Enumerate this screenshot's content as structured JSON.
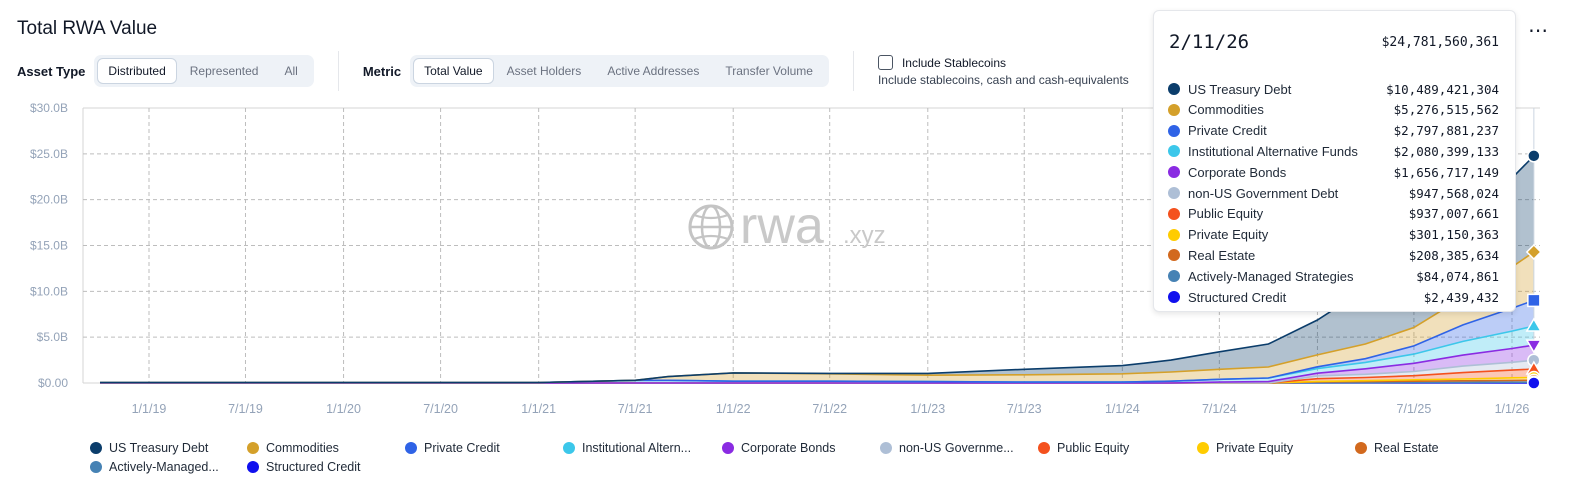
{
  "header": {
    "title": "Total RWA Value",
    "more_icon": "more-dots-icon"
  },
  "controls": {
    "asset_type_label": "Asset Type",
    "asset_type_options": [
      "Distributed",
      "Represented",
      "All"
    ],
    "asset_type_selected": "Distributed",
    "metric_label": "Metric",
    "metric_options": [
      "Total Value",
      "Asset Holders",
      "Active Addresses",
      "Transfer Volume"
    ],
    "metric_selected": "Total Value",
    "stablecoins_label": "Include Stablecoins",
    "stablecoins_sub": "Include stablecoins, cash and cash-equivalents",
    "stablecoins_checked": false
  },
  "watermark": {
    "brand": "rwa",
    "suffix": ".xyz",
    "icon": "globe-icon"
  },
  "tooltip": {
    "date": "2/11/26",
    "total": "$24,781,560,361",
    "rows": [
      {
        "name": "US Treasury Debt",
        "value": "$10,489,421,304",
        "color": "#0b3d6b"
      },
      {
        "name": "Commodities",
        "value": "$5,276,515,562",
        "color": "#d4a02a"
      },
      {
        "name": "Private Credit",
        "value": "$2,797,881,237",
        "color": "#2f63e6"
      },
      {
        "name": "Institutional Alternative Funds",
        "value": "$2,080,399,133",
        "color": "#3cc7ea"
      },
      {
        "name": "Corporate Bonds",
        "value": "$1,656,717,149",
        "color": "#8a2be2"
      },
      {
        "name": "non-US Government Debt",
        "value": "$947,568,024",
        "color": "#aebfd6"
      },
      {
        "name": "Public Equity",
        "value": "$937,007,661",
        "color": "#f4511e"
      },
      {
        "name": "Private Equity",
        "value": "$301,150,363",
        "color": "#ffcc00"
      },
      {
        "name": "Real Estate",
        "value": "$208,385,634",
        "color": "#d2691e"
      },
      {
        "name": "Actively-Managed Strategies",
        "value": "$84,074,861",
        "color": "#4682b4"
      },
      {
        "name": "Structured Credit",
        "value": "$2,439,432",
        "color": "#1010ee"
      }
    ]
  },
  "legend": [
    {
      "name": "US Treasury Debt",
      "color": "#0b3d6b"
    },
    {
      "name": "Commodities",
      "color": "#d4a02a"
    },
    {
      "name": "Private Credit",
      "color": "#2f63e6"
    },
    {
      "name": "Institutional Altern...",
      "color": "#3cc7ea"
    },
    {
      "name": "Corporate Bonds",
      "color": "#8a2be2"
    },
    {
      "name": "non-US Governme...",
      "color": "#aebfd6"
    },
    {
      "name": "Public Equity",
      "color": "#f4511e"
    },
    {
      "name": "Private Equity",
      "color": "#ffcc00"
    },
    {
      "name": "Real Estate",
      "color": "#d2691e"
    },
    {
      "name": "Actively-Managed...",
      "color": "#4682b4"
    },
    {
      "name": "Structured Credit",
      "color": "#1010ee"
    }
  ],
  "chart_data": {
    "type": "area",
    "stacked": true,
    "title": "Total RWA Value",
    "xlabel": "",
    "ylabel": "",
    "ylim": [
      0,
      30
    ],
    "yunit": "B",
    "yticks": [
      "$0.00",
      "$5.0B",
      "$10.0B",
      "$15.0B",
      "$20.0B",
      "$25.0B",
      "$30.0B"
    ],
    "xticks": [
      "1/1/19",
      "7/1/19",
      "1/1/20",
      "7/1/20",
      "1/1/21",
      "7/1/21",
      "1/1/22",
      "7/1/22",
      "1/1/23",
      "7/1/23",
      "1/1/24",
      "7/1/24",
      "1/1/25",
      "7/1/25",
      "1/1/26"
    ],
    "x": [
      "10/1/18",
      "1/1/19",
      "7/1/19",
      "1/1/20",
      "7/1/20",
      "1/1/21",
      "7/1/21",
      "9/1/21",
      "1/1/22",
      "7/1/22",
      "1/1/23",
      "7/1/23",
      "1/1/24",
      "4/1/24",
      "7/1/24",
      "10/1/24",
      "1/1/25",
      "4/1/25",
      "7/1/25",
      "10/1/25",
      "1/1/26",
      "2/11/26"
    ],
    "grid": true,
    "legend_position": "bottom",
    "series": [
      {
        "name": "Structured Credit",
        "color": "#1010ee",
        "values": [
          0,
          0,
          0,
          0,
          0,
          0,
          0,
          0,
          0,
          0,
          0,
          0,
          0,
          0,
          0,
          0,
          0,
          0,
          0,
          0,
          0.002,
          0.002
        ]
      },
      {
        "name": "Actively-Managed Strategies",
        "color": "#4682b4",
        "values": [
          0,
          0,
          0,
          0,
          0,
          0,
          0,
          0,
          0,
          0,
          0,
          0,
          0,
          0,
          0,
          0,
          0.02,
          0.03,
          0.05,
          0.06,
          0.08,
          0.084
        ]
      },
      {
        "name": "Real Estate",
        "color": "#d2691e",
        "values": [
          0,
          0,
          0,
          0,
          0,
          0,
          0,
          0,
          0,
          0,
          0,
          0,
          0,
          0,
          0,
          0,
          0.1,
          0.12,
          0.15,
          0.18,
          0.2,
          0.208
        ]
      },
      {
        "name": "Private Equity",
        "color": "#ffcc00",
        "values": [
          0,
          0,
          0,
          0,
          0,
          0,
          0,
          0,
          0,
          0,
          0,
          0,
          0,
          0,
          0,
          0,
          0.05,
          0.1,
          0.15,
          0.2,
          0.28,
          0.301
        ]
      },
      {
        "name": "Public Equity",
        "color": "#f4511e",
        "values": [
          0,
          0,
          0,
          0,
          0,
          0,
          0,
          0,
          0,
          0,
          0,
          0,
          0,
          0,
          0,
          0,
          0.3,
          0.35,
          0.45,
          0.7,
          0.85,
          0.937
        ]
      },
      {
        "name": "non-US Government Debt",
        "color": "#aebfd6",
        "values": [
          0,
          0,
          0,
          0,
          0,
          0,
          0,
          0,
          0,
          0,
          0,
          0,
          0,
          0,
          0,
          0,
          0.3,
          0.35,
          0.45,
          0.7,
          0.85,
          0.948
        ]
      },
      {
        "name": "Corporate Bonds",
        "color": "#8a2be2",
        "values": [
          0,
          0,
          0,
          0,
          0,
          0,
          0,
          0,
          0,
          0,
          0,
          0,
          0,
          0,
          0.1,
          0.15,
          0.3,
          0.6,
          0.9,
          1.2,
          1.5,
          1.657
        ]
      },
      {
        "name": "Institutional Alternative Funds",
        "color": "#3cc7ea",
        "values": [
          0.05,
          0.05,
          0.05,
          0.05,
          0.05,
          0.05,
          0.3,
          0.3,
          0.2,
          0.2,
          0.15,
          0.1,
          0.1,
          0.2,
          0.3,
          0.4,
          0.5,
          0.7,
          1.0,
          1.5,
          1.9,
          2.08
        ]
      },
      {
        "name": "Private Credit",
        "color": "#2f63e6",
        "values": [
          0,
          0,
          0,
          0,
          0,
          0,
          0,
          0,
          0,
          0,
          0,
          0,
          0,
          0,
          0,
          0,
          0.2,
          0.4,
          0.9,
          1.8,
          2.5,
          2.798
        ]
      },
      {
        "name": "Commodities",
        "color": "#d4a02a",
        "values": [
          0,
          0,
          0,
          0,
          0,
          0,
          0,
          0.4,
          0.9,
          0.8,
          0.7,
          0.8,
          0.9,
          1.0,
          1.1,
          1.2,
          1.3,
          1.6,
          2.0,
          3.0,
          4.5,
          5.277
        ]
      },
      {
        "name": "US Treasury Debt",
        "color": "#0b3d6b",
        "values": [
          0,
          0,
          0,
          0,
          0,
          0,
          0,
          0,
          0,
          0.05,
          0.2,
          0.6,
          0.9,
          1.3,
          1.9,
          2.5,
          3.8,
          6.0,
          7.5,
          8.8,
          9.7,
          10.489
        ]
      }
    ]
  }
}
